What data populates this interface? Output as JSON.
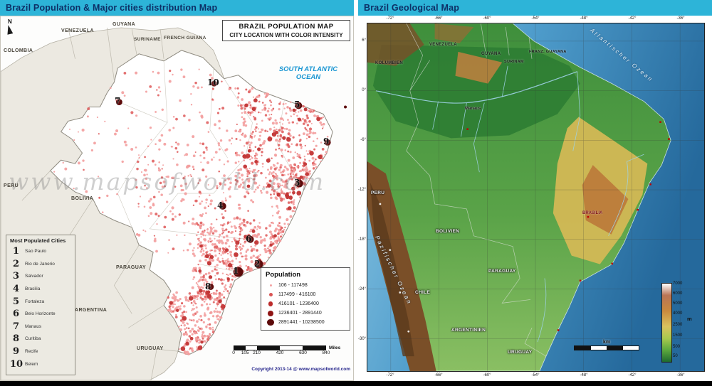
{
  "colors": {
    "titlebar_bg": "#2db4d8",
    "titlebar_text": "#0d2f66",
    "ocean_text": "#1895d2",
    "dot_light": "#f39d9d",
    "dot_medium": "#c23434",
    "dot_dark": "#5c0a0a"
  },
  "left": {
    "title": "Brazil Population & Major cities distribution Map",
    "north_label": "N",
    "map_title_line1": "BRAZIL POPULATION MAP",
    "map_title_line2": "CITY LOCATION WITH COLOR INTENSITY",
    "ocean_line1": "SOUTH ATLANTIC",
    "ocean_line2": "OCEAN",
    "watermark": "www.mapsofworld.com",
    "countries": {
      "venezuela": "VENEZUELA",
      "guyana": "GUYANA",
      "suriname": "SURINAME",
      "french_guiana": "FRENCH GUIANA",
      "colombia": "COLOMBIA",
      "peru": "PERU",
      "bolivia": "BOLIVIA",
      "paraguay": "PARAGUAY",
      "argentina": "ARGENTINA",
      "uruguay": "URUGUAY"
    },
    "cities_legend": {
      "title": "Most Populated Cities",
      "items": [
        {
          "rank": "1",
          "name": "Sao Paulo"
        },
        {
          "rank": "2",
          "name": "Rio de Janerio"
        },
        {
          "rank": "3",
          "name": "Salvador"
        },
        {
          "rank": "4",
          "name": "Brasilia"
        },
        {
          "rank": "5",
          "name": "Fortaleza"
        },
        {
          "rank": "6",
          "name": "Belo Horizonte"
        },
        {
          "rank": "7",
          "name": "Manaus"
        },
        {
          "rank": "8",
          "name": "Curitiba"
        },
        {
          "rank": "9",
          "name": "Recife"
        },
        {
          "rank": "10",
          "name": "Belem"
        }
      ]
    },
    "population_legend": {
      "title": "Population",
      "ranges": [
        "106 - 117498",
        "117499 - 416100",
        "416101 - 1236400",
        "1236401 - 2891440",
        "2891441 - 10238500"
      ]
    },
    "scale": {
      "ticks": [
        "0",
        "105",
        "210",
        "420",
        "630",
        "840"
      ],
      "unit": "Miles"
    },
    "copyright": "Copyright 2013-14 @ www.mapsofworld.com"
  },
  "right": {
    "title": "Brazil Geological Map",
    "countries": {
      "kolumbien": "KOLUMBIEN",
      "venezuela": "VENEZUELA",
      "guyana": "GUYANA",
      "surinam": "SURINAM",
      "franz_guayana": "FRANZ. GUAYANA",
      "peru": "PERU",
      "bolivien": "BOLIVIEN",
      "chile": "CHILE",
      "paraguay": "PARAGUAY",
      "argentinien": "ARGENTINIEN",
      "uruguay": "URUGUAY"
    },
    "oceans": {
      "atlantic": "Atlantischer Ozean",
      "pacific": "Pazifischer Ozean"
    },
    "cities": {
      "manaus": "Manaus",
      "brasilia": "BRASILIA"
    },
    "grid": {
      "lon": [
        "-72°",
        "-66°",
        "-60°",
        "-54°",
        "-48°",
        "-42°",
        "-36°"
      ],
      "lat": [
        "6°",
        "0°",
        "-6°",
        "-12°",
        "-18°",
        "-24°",
        "-30°"
      ]
    },
    "elevation": {
      "labels": [
        "7000",
        "6000",
        "5000",
        "4000",
        "2500",
        "1500",
        "500",
        "50"
      ],
      "unit": "m"
    },
    "scale_unit": "km"
  }
}
